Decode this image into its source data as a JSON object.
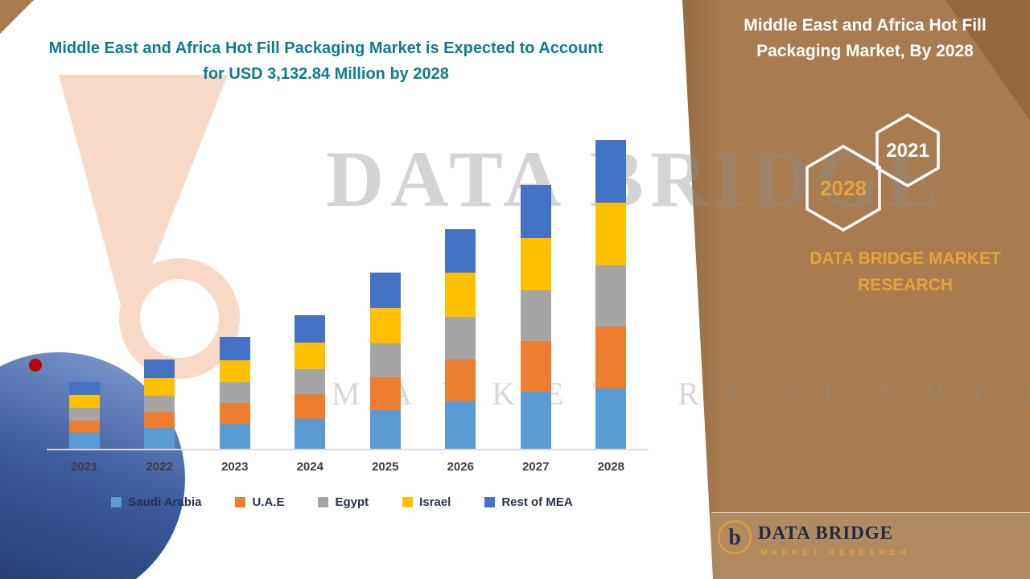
{
  "colors": {
    "accent_teal": "#0E7C8C",
    "panel_brown": "#A87B50",
    "panel_brown_dark": "#8C6238",
    "gold": "#E5A33C",
    "navy": "#26324E",
    "watermark_gray": "#8F8F8F"
  },
  "left": {
    "title": "Middle East and Africa Hot Fill Packaging Market is Expected to Account for USD 3,132.84 Million by 2028"
  },
  "watermark": {
    "line1": "DATA BRIDGE",
    "line2": "MARKET RESEARCH"
  },
  "right_panel": {
    "title": "Middle East and Africa Hot Fill Packaging Market, By 2028",
    "hexagons": [
      {
        "label": "2028",
        "text_color": "#E5A33C"
      },
      {
        "label": "2021",
        "text_color": "#FFFFFF"
      }
    ],
    "brand_text": "DATA BRIDGE MARKET RESEARCH",
    "footer": {
      "logo_letter": "b",
      "name": "DATA BRIDGE",
      "tagline": "MARKET RESEARCH"
    }
  },
  "chart_data": {
    "type": "bar",
    "subtype": "stacked",
    "title": "Middle East and Africa Hot Fill Packaging Market is Expected to Account for USD 3,132.84 Million by 2028",
    "unit": "USD Million",
    "xlabel": "",
    "ylabel": "",
    "grid": false,
    "legend_position": "bottom",
    "categories": [
      "2021",
      "2022",
      "2023",
      "2024",
      "2025",
      "2026",
      "2027",
      "2028"
    ],
    "series": [
      {
        "name": "Saudi Arabia",
        "color": "#5B9BD5",
        "values": [
          165,
          210,
          255,
          300,
          390,
          480,
          580,
          615
        ]
      },
      {
        "name": "U.A.E",
        "color": "#ED7D31",
        "values": [
          125,
          165,
          210,
          255,
          340,
          430,
          515,
          630
        ]
      },
      {
        "name": "Egypt",
        "color": "#A5A5A5",
        "values": [
          125,
          165,
          210,
          255,
          340,
          430,
          515,
          620
        ]
      },
      {
        "name": "Israel",
        "color": "#FFC000",
        "values": [
          130,
          180,
          225,
          270,
          355,
          445,
          530,
          632.84
        ]
      },
      {
        "name": "Rest of MEA",
        "color": "#4472C4",
        "values": [
          135,
          185,
          235,
          275,
          360,
          445,
          535,
          635
        ]
      }
    ],
    "totals": [
      680,
      905,
      1135,
      1355,
      1785,
      2230,
      2675,
      3132.84
    ],
    "ylim": [
      0,
      3200
    ]
  }
}
